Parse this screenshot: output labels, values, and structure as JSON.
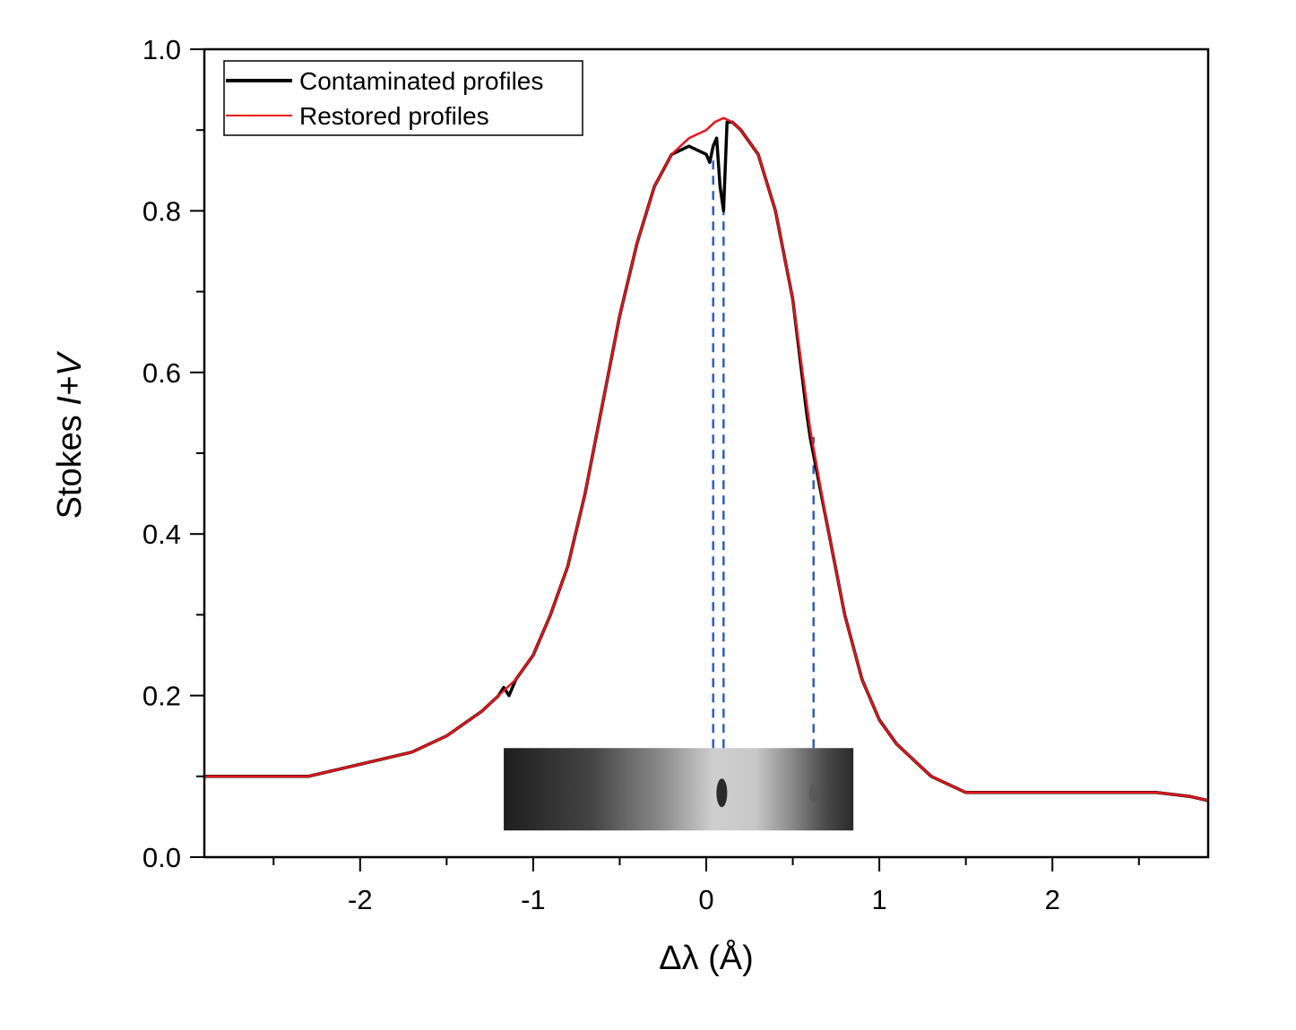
{
  "chart_data": {
    "type": "line",
    "title": "",
    "xlabel": "Δλ (Å)",
    "ylabel_prefix": "Stokes ",
    "ylabel_italic": "I+V",
    "xlim": [
      -2.9,
      2.9
    ],
    "ylim": [
      0.0,
      1.0
    ],
    "xticks": [
      -2,
      -1,
      0,
      1,
      2
    ],
    "xtick_labels": [
      "-2",
      "-1",
      "0",
      "1",
      "2"
    ],
    "yticks": [
      0.0,
      0.2,
      0.4,
      0.6,
      0.8,
      1.0
    ],
    "ytick_labels": [
      "0.0",
      "0.2",
      "0.4",
      "0.6",
      "0.8",
      "1.0"
    ],
    "grid": false,
    "legend_position": "top-left",
    "series": [
      {
        "name": "Contaminated profiles",
        "color": "#000000",
        "x": [
          -2.9,
          -2.6,
          -2.3,
          -2.1,
          -1.9,
          -1.7,
          -1.5,
          -1.3,
          -1.2,
          -1.17,
          -1.14,
          -1.1,
          -1.0,
          -0.9,
          -0.8,
          -0.7,
          -0.6,
          -0.5,
          -0.4,
          -0.3,
          -0.2,
          -0.1,
          0.0,
          0.02,
          0.04,
          0.06,
          0.08,
          0.1,
          0.12,
          0.15,
          0.2,
          0.3,
          0.4,
          0.5,
          0.58,
          0.6,
          0.7,
          0.8,
          0.9,
          1.0,
          1.1,
          1.2,
          1.3,
          1.4,
          1.5,
          1.6,
          1.8,
          2.0,
          2.2,
          2.4,
          2.6,
          2.8,
          2.9
        ],
        "y": [
          0.1,
          0.1,
          0.1,
          0.11,
          0.12,
          0.13,
          0.15,
          0.18,
          0.2,
          0.21,
          0.2,
          0.22,
          0.25,
          0.3,
          0.36,
          0.45,
          0.56,
          0.67,
          0.76,
          0.83,
          0.87,
          0.88,
          0.87,
          0.86,
          0.88,
          0.89,
          0.83,
          0.8,
          0.91,
          0.91,
          0.9,
          0.87,
          0.8,
          0.69,
          0.55,
          0.52,
          0.41,
          0.3,
          0.22,
          0.17,
          0.14,
          0.12,
          0.1,
          0.09,
          0.08,
          0.08,
          0.08,
          0.08,
          0.08,
          0.08,
          0.08,
          0.075,
          0.07
        ]
      },
      {
        "name": "Restored profiles",
        "color": "#e8141b",
        "x": [
          -2.9,
          -2.6,
          -2.3,
          -2.1,
          -1.9,
          -1.7,
          -1.5,
          -1.3,
          -1.2,
          -1.1,
          -1.0,
          -0.9,
          -0.8,
          -0.7,
          -0.6,
          -0.5,
          -0.4,
          -0.3,
          -0.2,
          -0.1,
          0.0,
          0.05,
          0.1,
          0.15,
          0.2,
          0.3,
          0.4,
          0.5,
          0.6,
          0.7,
          0.8,
          0.9,
          1.0,
          1.1,
          1.2,
          1.3,
          1.4,
          1.5,
          1.6,
          1.8,
          2.0,
          2.2,
          2.4,
          2.6,
          2.8,
          2.9
        ],
        "y": [
          0.1,
          0.1,
          0.1,
          0.11,
          0.12,
          0.13,
          0.15,
          0.18,
          0.2,
          0.22,
          0.25,
          0.3,
          0.36,
          0.45,
          0.56,
          0.67,
          0.76,
          0.83,
          0.87,
          0.89,
          0.9,
          0.91,
          0.915,
          0.91,
          0.9,
          0.87,
          0.8,
          0.69,
          0.53,
          0.41,
          0.3,
          0.22,
          0.17,
          0.14,
          0.12,
          0.1,
          0.09,
          0.08,
          0.08,
          0.08,
          0.08,
          0.08,
          0.08,
          0.08,
          0.075,
          0.07
        ]
      }
    ],
    "reference_lines": [
      {
        "x": 0.04,
        "y_bottom": 0.135,
        "y_top": 0.87,
        "style": "dashed",
        "color": "#2f5fbf"
      },
      {
        "x": 0.1,
        "y_bottom": 0.135,
        "y_top": 0.8,
        "style": "dashed",
        "color": "#2f5fbf"
      },
      {
        "x": 0.62,
        "y_bottom": 0.135,
        "y_top": 0.52,
        "style": "dashed",
        "color": "#2f5fbf"
      }
    ],
    "inset_image": {
      "description_icon": "spectrum-strip-image",
      "x_range": [
        -1.17,
        0.85
      ],
      "y_range": [
        0.033,
        0.135
      ],
      "dark_spots_x": [
        0.09,
        0.62
      ]
    }
  }
}
